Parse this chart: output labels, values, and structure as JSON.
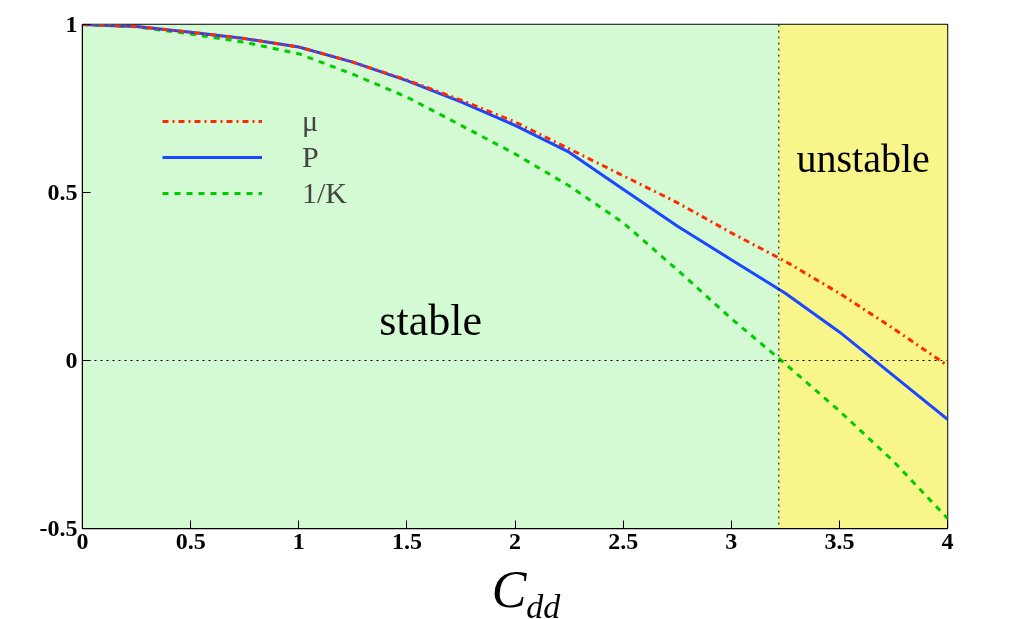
{
  "chart_data": {
    "type": "line",
    "xlabel": "C$_{dd}$",
    "x": [
      0,
      0.25,
      0.5,
      0.75,
      1,
      1.25,
      1.5,
      1.75,
      2,
      2.25,
      2.5,
      2.75,
      3,
      3.25,
      3.5,
      3.75,
      4
    ],
    "series": [
      {
        "name": "μ",
        "color": "#ff2a00",
        "line_style": "dashdot",
        "values": [
          1,
          0.994,
          0.977,
          0.958,
          0.933,
          0.888,
          0.835,
          0.775,
          0.71,
          0.63,
          0.55,
          0.47,
          0.38,
          0.295,
          0.2,
          0.095,
          -0.015
        ]
      },
      {
        "name": "P",
        "color": "#1a47ff",
        "line_style": "solid",
        "values": [
          1,
          0.994,
          0.977,
          0.958,
          0.933,
          0.888,
          0.833,
          0.77,
          0.7,
          0.62,
          0.51,
          0.4,
          0.3,
          0.2,
          0.085,
          -0.045,
          -0.175
        ]
      },
      {
        "name": "1/K",
        "color": "#00cc00",
        "line_style": "dashed",
        "values": [
          1,
          0.993,
          0.972,
          0.947,
          0.913,
          0.852,
          0.784,
          0.7,
          0.615,
          0.52,
          0.41,
          0.27,
          0.125,
          -0.01,
          -0.15,
          -0.3,
          -0.47
        ]
      }
    ],
    "bands": [
      {
        "axis": "x",
        "from": 0,
        "to": 3.22,
        "label": "stable",
        "color": "#d4fad4"
      },
      {
        "axis": "x",
        "from": 3.22,
        "to": 4,
        "label": "unstable",
        "color": "#f8f68a"
      }
    ],
    "ref_lines": [
      {
        "axis": "x",
        "value": 3.22,
        "line_style": "dotted"
      },
      {
        "axis": "y",
        "value": 0,
        "line_style": "dotted"
      }
    ],
    "xlim": [
      0,
      4
    ],
    "ylim": [
      -0.5,
      1
    ],
    "xticks": [
      0,
      0.5,
      1,
      1.5,
      2,
      2.5,
      3,
      3.5,
      4
    ],
    "yticks": [
      -0.5,
      0,
      0.5,
      1
    ],
    "grid": false,
    "legend": "top left"
  }
}
